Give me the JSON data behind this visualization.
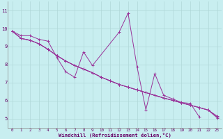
{
  "background_color": "#c8eef0",
  "grid_color": "#b0d8d8",
  "line_color": "#993399",
  "xlim": [
    -0.5,
    23.5
  ],
  "ylim": [
    4.5,
    11.5
  ],
  "xtick_vals": [
    0,
    1,
    2,
    3,
    4,
    5,
    6,
    7,
    8,
    9,
    10,
    11,
    12,
    13,
    14,
    15,
    16,
    17,
    18,
    19,
    20,
    21,
    22,
    23
  ],
  "xtick_labels": [
    "0",
    "1",
    "2",
    "3",
    "4",
    "5",
    "6",
    "7",
    "8",
    "9",
    "10",
    "11",
    "12",
    "13",
    "14",
    "15",
    "16",
    "17",
    "18",
    "19",
    "20",
    "21",
    "22",
    "23"
  ],
  "ytick_vals": [
    5,
    6,
    7,
    8,
    9,
    10,
    11
  ],
  "ytick_labels": [
    "5",
    "6",
    "7",
    "8",
    "9",
    "10",
    "11"
  ],
  "xlabel": "Windchill (Refroidissement éolien,°C)",
  "series1_x": [
    0,
    1,
    2,
    3,
    4,
    5,
    6,
    7,
    8,
    9,
    10,
    11,
    12,
    13,
    14,
    15,
    16,
    17,
    18,
    19,
    20,
    21,
    22,
    23
  ],
  "series1_y": [
    9.85,
    9.45,
    9.35,
    9.15,
    8.85,
    8.5,
    8.2,
    7.95,
    7.75,
    7.55,
    7.3,
    7.1,
    6.9,
    6.75,
    6.6,
    6.45,
    6.3,
    6.15,
    6.02,
    5.88,
    5.75,
    5.62,
    5.48,
    5.05
  ],
  "series2_x": [
    0,
    1,
    2,
    3,
    4,
    5,
    6,
    7,
    8,
    9,
    10,
    11,
    12,
    13,
    14,
    15,
    16,
    17,
    18,
    19,
    20,
    21,
    22,
    23
  ],
  "series2_y": [
    9.85,
    9.45,
    9.35,
    9.15,
    8.85,
    8.5,
    8.2,
    7.95,
    7.75,
    7.55,
    7.3,
    7.1,
    6.9,
    6.75,
    6.6,
    6.45,
    6.3,
    6.15,
    6.02,
    5.88,
    5.75,
    5.62,
    5.48,
    5.1
  ],
  "series3_x": [
    0,
    1,
    2,
    3,
    4,
    5,
    6,
    7,
    8,
    9,
    10,
    11,
    12,
    13,
    14,
    15,
    16,
    17,
    18,
    19,
    20,
    21,
    22,
    23
  ],
  "series3_y": [
    9.85,
    9.45,
    9.35,
    9.15,
    8.85,
    8.5,
    8.2,
    7.95,
    7.75,
    7.55,
    7.3,
    7.1,
    6.9,
    6.75,
    6.6,
    6.45,
    6.3,
    6.15,
    6.02,
    5.88,
    5.75,
    5.62,
    5.48,
    5.15
  ],
  "series4_x": [
    0,
    1,
    2,
    3,
    4,
    5,
    6,
    7,
    8,
    9,
    12,
    13,
    14,
    15,
    16,
    17,
    18,
    19,
    20,
    21
  ],
  "series4_y": [
    9.85,
    9.6,
    9.6,
    9.4,
    9.3,
    8.4,
    7.6,
    7.3,
    8.7,
    7.95,
    9.8,
    10.85,
    7.9,
    5.5,
    7.5,
    6.3,
    6.1,
    5.9,
    5.85,
    5.1
  ]
}
